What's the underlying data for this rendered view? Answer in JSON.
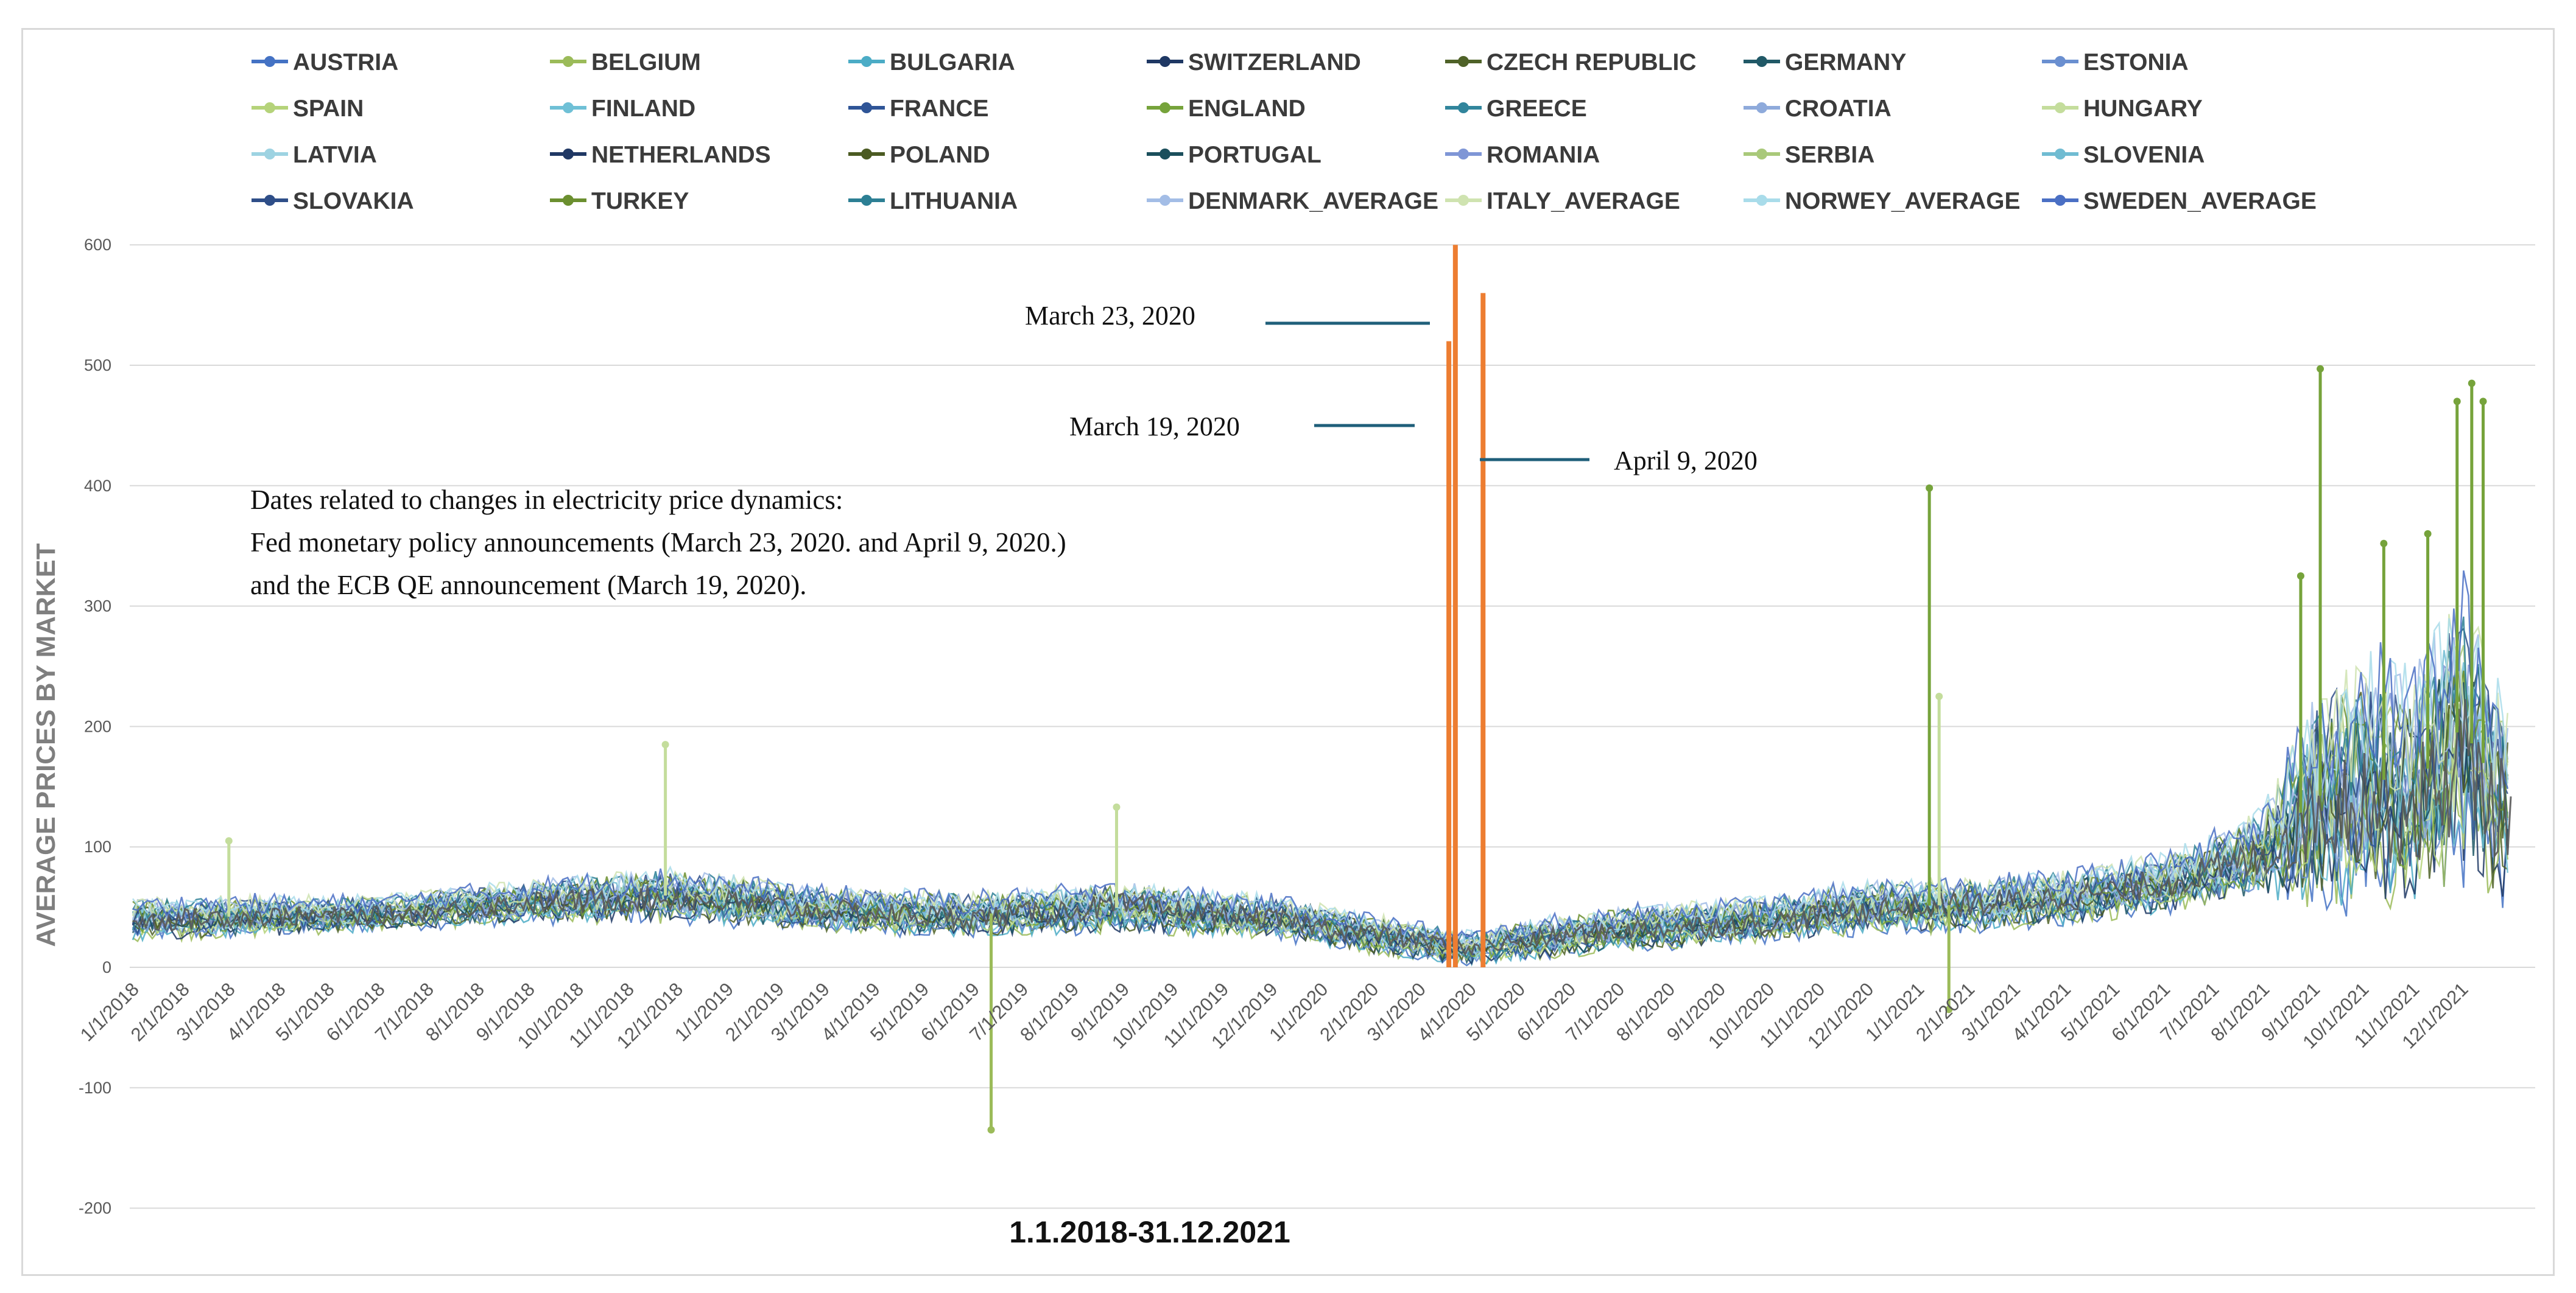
{
  "chart_data": {
    "type": "line",
    "title": "",
    "xlabel": "1.1.2018-31.12.2021",
    "ylabel": "AVERAGE PRICES BY MARKET",
    "ylim": [
      -200,
      600
    ],
    "yticks": [
      600,
      500,
      400,
      300,
      200,
      100,
      0,
      -100,
      -200
    ],
    "x_range": [
      "2018-01-01",
      "2021-12-31"
    ],
    "x_tick_labels": [
      "1/1/2018",
      "2/1/2018",
      "3/1/2018",
      "4/1/2018",
      "5/1/2018",
      "6/1/2018",
      "7/1/2018",
      "8/1/2018",
      "9/1/2018",
      "10/1/2018",
      "11/1/2018",
      "12/1/2018",
      "1/1/2019",
      "2/1/2019",
      "3/1/2019",
      "4/1/2019",
      "5/1/2019",
      "6/1/2019",
      "7/1/2019",
      "8/1/2019",
      "9/1/2019",
      "10/1/2019",
      "11/1/2019",
      "12/1/2019",
      "1/1/2020",
      "2/1/2020",
      "3/1/2020",
      "4/1/2020",
      "5/1/2020",
      "6/1/2020",
      "7/1/2020",
      "8/1/2020",
      "9/1/2020",
      "10/1/2020",
      "11/1/2020",
      "12/1/2020",
      "1/1/2021",
      "2/1/2021",
      "3/1/2021",
      "4/1/2021",
      "5/1/2021",
      "6/1/2021",
      "7/1/2021",
      "8/1/2021",
      "9/1/2021",
      "10/1/2021",
      "11/1/2021",
      "12/1/2021"
    ],
    "grid": true,
    "legend_position": "top",
    "series": [
      {
        "name": "AUSTRIA",
        "color": "#4472c4"
      },
      {
        "name": "BELGIUM",
        "color": "#9bbb59"
      },
      {
        "name": "BULGARIA",
        "color": "#4bacc6"
      },
      {
        "name": "SWITZERLAND",
        "color": "#1f3864"
      },
      {
        "name": "CZECH REPUBLIC",
        "color": "#4f6228"
      },
      {
        "name": "GERMANY",
        "color": "#215967"
      },
      {
        "name": "ESTONIA",
        "color": "#6a8fd0"
      },
      {
        "name": "SPAIN",
        "color": "#b5d37a"
      },
      {
        "name": "FINLAND",
        "color": "#6fc0d6"
      },
      {
        "name": "FRANCE",
        "color": "#2f5597"
      },
      {
        "name": "ENGLAND",
        "color": "#76a33b"
      },
      {
        "name": "GREECE",
        "color": "#31859c"
      },
      {
        "name": "CROATIA",
        "color": "#8eaadb"
      },
      {
        "name": "HUNGARY",
        "color": "#c4dd9c"
      },
      {
        "name": "LATVIA",
        "color": "#9dd3e2"
      },
      {
        "name": "NETHERLANDS",
        "color": "#203864"
      },
      {
        "name": "POLAND",
        "color": "#4b5b22"
      },
      {
        "name": "PORTUGAL",
        "color": "#1b4f5c"
      },
      {
        "name": "ROMANIA",
        "color": "#7f96d6"
      },
      {
        "name": "SERBIA",
        "color": "#a9c97a"
      },
      {
        "name": "SLOVENIA",
        "color": "#70bcd2"
      },
      {
        "name": "SLOVAKIA",
        "color": "#2e4e88"
      },
      {
        "name": "TURKEY",
        "color": "#6b8f2f"
      },
      {
        "name": "LITHUANIA",
        "color": "#2c7f94"
      },
      {
        "name": "DENMARK_AVERAGE",
        "color": "#a3bde6"
      },
      {
        "name": "ITALY_AVERAGE",
        "color": "#cfe3b0"
      },
      {
        "name": "NORWEY_AVERAGE",
        "color": "#a9dcea"
      },
      {
        "name": "SWEDEN_AVERAGE",
        "color": "#4a6fc4"
      }
    ],
    "envelope": {
      "dates": [
        "2018-01-01",
        "2018-03-01",
        "2018-06-01",
        "2018-09-01",
        "2018-12-01",
        "2019-03-01",
        "2019-06-01",
        "2019-09-01",
        "2019-12-01",
        "2020-02-01",
        "2020-04-01",
        "2020-05-01",
        "2020-07-01",
        "2020-10-01",
        "2020-12-01",
        "2021-02-01",
        "2021-04-01",
        "2021-06-01",
        "2021-07-01",
        "2021-08-01",
        "2021-09-01",
        "2021-10-01",
        "2021-11-01",
        "2021-12-01",
        "2021-12-31"
      ],
      "upper": [
        55,
        60,
        58,
        72,
        80,
        66,
        60,
        72,
        58,
        45,
        30,
        38,
        50,
        56,
        70,
        75,
        80,
        95,
        110,
        130,
        220,
        250,
        230,
        300,
        200
      ],
      "center": [
        40,
        42,
        45,
        55,
        60,
        48,
        44,
        50,
        42,
        28,
        16,
        22,
        32,
        40,
        50,
        52,
        58,
        70,
        82,
        95,
        140,
        160,
        150,
        200,
        130
      ],
      "lower": [
        20,
        24,
        28,
        35,
        35,
        28,
        22,
        30,
        22,
        10,
        2,
        5,
        12,
        18,
        25,
        30,
        35,
        45,
        50,
        55,
        40,
        35,
        30,
        50,
        40
      ]
    },
    "spikes": [
      {
        "date": "2018-03-01",
        "value": 105
      },
      {
        "date": "2018-11-24",
        "value": 185
      },
      {
        "date": "2019-06-12",
        "value": -135
      },
      {
        "date": "2019-08-28",
        "value": 133
      },
      {
        "date": "2021-01-08",
        "value": 398
      },
      {
        "date": "2021-01-14",
        "value": 225
      },
      {
        "date": "2021-01-20",
        "value": -35
      },
      {
        "date": "2021-08-24",
        "value": 325
      },
      {
        "date": "2021-09-05",
        "value": 497
      },
      {
        "date": "2021-10-14",
        "value": 352
      },
      {
        "date": "2021-11-10",
        "value": 360
      },
      {
        "date": "2021-11-28",
        "value": 470
      },
      {
        "date": "2021-12-07",
        "value": 485
      },
      {
        "date": "2021-12-14",
        "value": 470
      }
    ],
    "annotations": {
      "event_lines": [
        {
          "label": "March 19, 2020",
          "date": "2020-03-19",
          "value": 520
        },
        {
          "label": "March 23, 2020",
          "date": "2020-03-23",
          "value": 600
        },
        {
          "label": "April 9, 2020",
          "date": "2020-04-09",
          "value": 560
        }
      ],
      "text_block": [
        "Dates related to changes in electricity price dynamics:",
        "Fed monetary policy announcements (March 23, 2020. and April 9, 2020.)",
        "and the ECB QE announcement (March 19, 2020)."
      ],
      "event_line_color": "#ed7d31",
      "callout_color": "#1f5f7a",
      "dense_band_color": "#595959"
    }
  }
}
